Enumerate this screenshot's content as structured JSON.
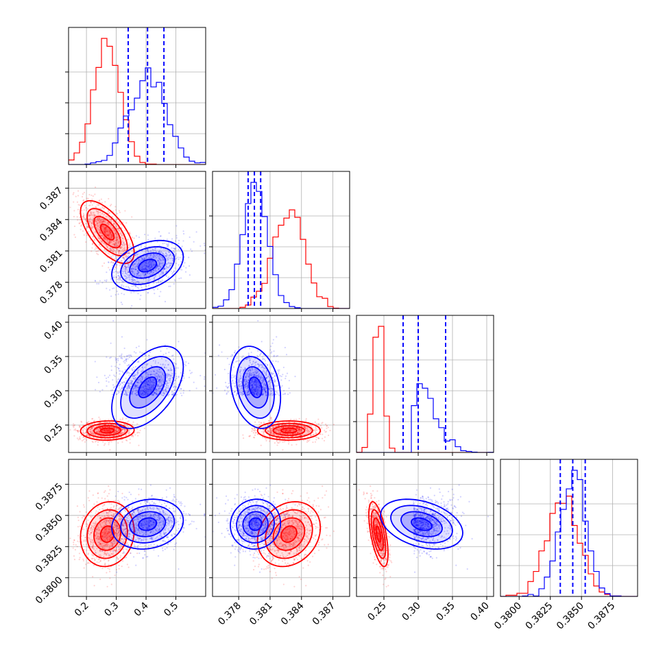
{
  "colors": {
    "red": "#ff0000",
    "blue": "#0000ff",
    "grid": "#b0b0b0"
  },
  "chart_data": {
    "type": "corner",
    "grid": true,
    "parameters": [
      {
        "ticks": [
          0.2,
          0.3,
          0.4,
          0.5
        ],
        "tick_labels": [
          "0.2",
          "0.3",
          "0.4",
          "0.5"
        ],
        "range": [
          0.14,
          0.6
        ]
      },
      {
        "ticks": [
          0.378,
          0.381,
          0.384,
          0.387
        ],
        "tick_labels": [
          "0.378",
          "0.381",
          "0.384",
          "0.387"
        ],
        "range": [
          0.3755,
          0.3886
        ]
      },
      {
        "ticks": [
          0.25,
          0.3,
          0.35,
          0.4
        ],
        "tick_labels": [
          "0.25",
          "0.30",
          "0.35",
          "0.40"
        ],
        "range": [
          0.21,
          0.41
        ]
      },
      {
        "ticks": [
          0.38,
          0.3825,
          0.385,
          0.3875
        ],
        "tick_labels": [
          "0.3800",
          "0.3825",
          "0.3850",
          "0.3875"
        ],
        "range": [
          0.3785,
          0.3895
        ]
      }
    ],
    "series": [
      {
        "color": "red",
        "mean": [
          0.27,
          0.3828,
          0.242,
          0.3835
        ],
        "sd": [
          0.045,
          0.0015,
          0.007,
          0.0013
        ],
        "corr": [
          [
            1,
            -0.65,
            0.05,
            0.1
          ],
          [
            -0.65,
            1,
            0,
            0.2
          ],
          [
            0.05,
            0,
            1,
            -0.6
          ],
          [
            0.1,
            0.2,
            -0.6,
            1
          ]
        ]
      },
      {
        "color": "blue",
        "mean": [
          0.405,
          0.3796,
          0.305,
          0.3843
        ],
        "sd": [
          0.06,
          0.0012,
          0.03,
          0.001
        ],
        "corr": [
          [
            1,
            0.35,
            0.5,
            0.15
          ],
          [
            0.35,
            1,
            -0.25,
            0.05
          ],
          [
            0.5,
            -0.25,
            1,
            -0.35
          ],
          [
            0.15,
            0.05,
            -0.35,
            1
          ]
        ]
      }
    ],
    "quantiles_blue": [
      [
        0.34,
        0.405,
        0.46
      ],
      [
        0.3789,
        0.3795,
        0.3801
      ],
      [
        0.278,
        0.3,
        0.34
      ],
      [
        0.3833,
        0.3843,
        0.3853
      ]
    ]
  }
}
